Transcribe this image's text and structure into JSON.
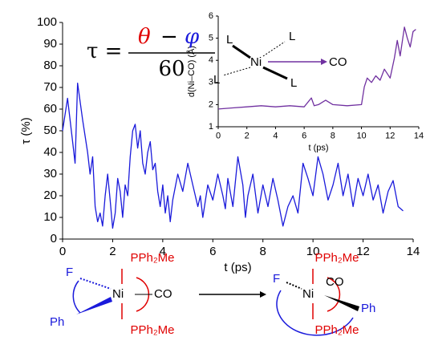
{
  "chart_data": [
    {
      "type": "line",
      "xlabel": "t (ps)",
      "ylabel": "τ (%)",
      "xlim": [
        0,
        14
      ],
      "xticks": [
        0,
        2,
        4,
        6,
        8,
        10,
        12,
        14
      ],
      "ylim": [
        0,
        100
      ],
      "yticks": [
        0,
        10,
        20,
        30,
        40,
        50,
        60,
        70,
        80,
        90,
        100
      ],
      "series": [
        {
          "color": "#1a1adb",
          "x": [
            0,
            0.2,
            0.4,
            0.5,
            0.6,
            0.8,
            1.0,
            1.1,
            1.2,
            1.3,
            1.4,
            1.5,
            1.6,
            1.7,
            1.8,
            1.9,
            2.0,
            2.1,
            2.2,
            2.3,
            2.4,
            2.5,
            2.6,
            2.7,
            2.8,
            2.9,
            3.0,
            3.1,
            3.2,
            3.3,
            3.4,
            3.5,
            3.6,
            3.7,
            3.8,
            3.9,
            4.0,
            4.1,
            4.2,
            4.3,
            4.4,
            4.6,
            4.8,
            5.0,
            5.2,
            5.4,
            5.5,
            5.6,
            5.8,
            6.0,
            6.2,
            6.4,
            6.5,
            6.6,
            6.8,
            7.0,
            7.2,
            7.3,
            7.4,
            7.6,
            7.8,
            8.0,
            8.2,
            8.4,
            8.6,
            8.8,
            9.0,
            9.2,
            9.4,
            9.6,
            9.8,
            10.0,
            10.2,
            10.4,
            10.6,
            10.8,
            11.0,
            11.2,
            11.4,
            11.6,
            11.8,
            12.0,
            12.2,
            12.4,
            12.6,
            12.8,
            13.0,
            13.2,
            13.4,
            13.6
          ],
          "values": [
            50,
            65,
            45,
            35,
            72,
            55,
            40,
            30,
            38,
            15,
            8,
            12,
            6,
            20,
            30,
            18,
            5,
            12,
            28,
            22,
            10,
            25,
            20,
            38,
            50,
            53,
            42,
            50,
            35,
            30,
            40,
            45,
            32,
            35,
            22,
            15,
            25,
            12,
            20,
            8,
            18,
            30,
            22,
            35,
            25,
            15,
            20,
            10,
            25,
            18,
            30,
            20,
            14,
            28,
            15,
            38,
            25,
            10,
            20,
            30,
            12,
            25,
            15,
            28,
            18,
            6,
            15,
            20,
            12,
            35,
            28,
            20,
            38,
            30,
            18,
            25,
            35,
            20,
            30,
            15,
            28,
            20,
            30,
            18,
            25,
            12,
            22,
            27,
            15,
            13
          ]
        }
      ]
    },
    {
      "type": "line",
      "xlabel": "t (ps)",
      "ylabel": "d(Ni–CO) (Å)",
      "xlim": [
        0,
        14
      ],
      "xticks": [
        0,
        2,
        4,
        6,
        8,
        10,
        12,
        14
      ],
      "ylim": [
        1,
        6
      ],
      "yticks": [
        1,
        2,
        3,
        4,
        5,
        6
      ],
      "series": [
        {
          "color": "#7030a0",
          "x": [
            0,
            1,
            2,
            3,
            4,
            5,
            6,
            6.5,
            6.7,
            7,
            7.5,
            8,
            9,
            10,
            10.2,
            10.4,
            10.7,
            11,
            11.3,
            11.6,
            12,
            12.3,
            12.5,
            12.7,
            13,
            13.2,
            13.4,
            13.6,
            13.8
          ],
          "values": [
            1.8,
            1.85,
            1.9,
            1.95,
            1.9,
            1.95,
            1.9,
            2.3,
            1.95,
            2.0,
            2.2,
            2.0,
            1.95,
            2.0,
            2.8,
            3.2,
            3.0,
            3.3,
            3.1,
            3.6,
            3.2,
            4.1,
            4.9,
            4.2,
            5.5,
            5.0,
            4.6,
            5.3,
            5.4
          ]
        }
      ]
    }
  ],
  "equation": {
    "lhs": "τ =",
    "theta": "θ",
    "minus": "−",
    "phi": "φ",
    "denominator": "60"
  },
  "inset_molecule": {
    "ligands": [
      "L",
      "L",
      "L",
      "L"
    ],
    "metal": "Ni",
    "leaving": "CO"
  },
  "reaction": {
    "left": {
      "top": "PPh₂Me",
      "bottom": "PPh₂Me",
      "metal": "Ni",
      "f": "F",
      "ph": "Ph",
      "co": "CO"
    },
    "right": {
      "top": "PPh₂Me",
      "bottom": "PPh₂Me",
      "metal": "Ni",
      "f": "F",
      "ph": "Ph",
      "co": "CO"
    }
  }
}
